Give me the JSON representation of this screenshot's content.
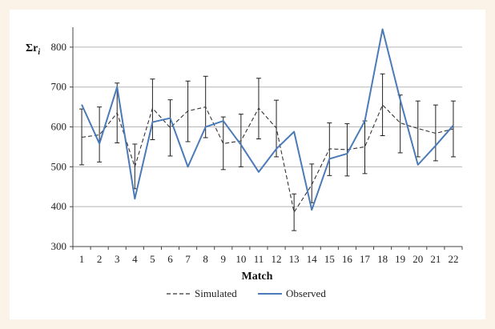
{
  "chart_data": {
    "type": "line",
    "xlabel": "Match",
    "ylabel_symbol": "Σr",
    "ylabel_subscript": "i",
    "ylim": [
      300,
      850
    ],
    "yticks": [
      300,
      400,
      500,
      600,
      700,
      800
    ],
    "grid": true,
    "legend_position": "bottom",
    "categories": [
      "1",
      "2",
      "3",
      "4",
      "5",
      "6",
      "7",
      "8",
      "9",
      "10",
      "11",
      "12",
      "13",
      "14",
      "15",
      "16",
      "17",
      "18",
      "19",
      "20",
      "21",
      "22"
    ],
    "series": [
      {
        "name": "Simulated",
        "color": "#333333",
        "style": "dashed",
        "values": [
          574,
          580,
          635,
          500,
          647,
          598,
          640,
          650,
          558,
          565,
          647,
          597,
          386,
          455,
          545,
          543,
          550,
          655,
          610,
          596,
          584,
          595
        ],
        "error_low": [
          505,
          512,
          560,
          445,
          568,
          527,
          563,
          573,
          493,
          500,
          570,
          525,
          340,
          410,
          478,
          477,
          483,
          578,
          535,
          525,
          515,
          525
        ],
        "error_high": [
          645,
          650,
          710,
          557,
          720,
          668,
          715,
          727,
          625,
          632,
          722,
          667,
          432,
          507,
          610,
          608,
          615,
          733,
          680,
          665,
          655,
          665
        ]
      },
      {
        "name": "Observed",
        "color": "#4a7ab8",
        "style": "solid",
        "values": [
          656,
          558,
          700,
          420,
          612,
          622,
          500,
          600,
          615,
          555,
          487,
          545,
          588,
          392,
          520,
          533,
          615,
          845,
          668,
          505,
          553,
          604
        ]
      }
    ]
  }
}
